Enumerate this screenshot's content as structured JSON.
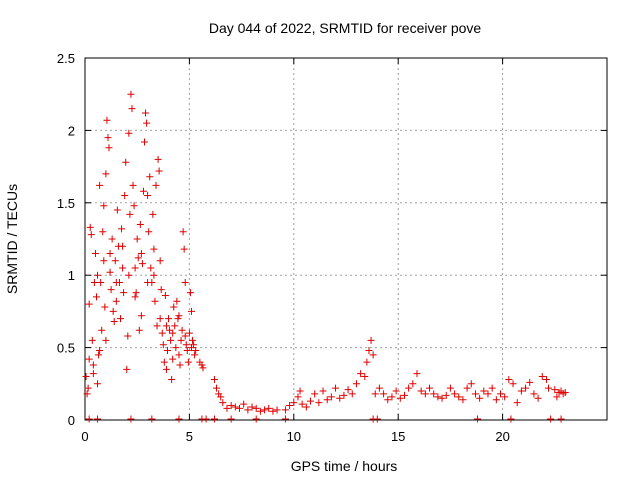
{
  "chart_data": {
    "type": "scatter",
    "title": "Day 044 of 2022, SRMTID for receiver pove",
    "xlabel": "GPS time / hours",
    "ylabel": "SRMTID / TECUs",
    "xlim": [
      0,
      25
    ],
    "ylim": [
      0,
      2.5
    ],
    "x_ticks": [
      0,
      5,
      10,
      15,
      20
    ],
    "x_tick_labels": [
      "0",
      "5",
      "10",
      "15",
      "20"
    ],
    "y_ticks": [
      0,
      0.5,
      1,
      1.5,
      2,
      2.5
    ],
    "y_tick_labels": [
      "0",
      "0.5",
      "1",
      "1.5",
      "2",
      "2.5"
    ],
    "grid": true,
    "marker": "+",
    "color": "#e00000",
    "series": [
      {
        "name": "SRMTID",
        "points": [
          [
            0.05,
            0.3
          ],
          [
            0.1,
            0.18
          ],
          [
            0.15,
            0.22
          ],
          [
            0.2,
            0.42
          ],
          [
            0.25,
            1.33
          ],
          [
            0.3,
            1.28
          ],
          [
            0.35,
            0.55
          ],
          [
            0.4,
            0.38
          ],
          [
            0.45,
            0.95
          ],
          [
            0.5,
            1.15
          ],
          [
            0.55,
            0.85
          ],
          [
            0.6,
            0.25
          ],
          [
            0.65,
            0.45
          ],
          [
            0.7,
            1.62
          ],
          [
            0.75,
            0.95
          ],
          [
            0.8,
            0.62
          ],
          [
            0.85,
            1.3
          ],
          [
            0.9,
            1.48
          ],
          [
            0.95,
            0.78
          ],
          [
            1.0,
            1.7
          ],
          [
            1.05,
            2.07
          ],
          [
            1.1,
            1.95
          ],
          [
            1.15,
            1.88
          ],
          [
            1.2,
            1.02
          ],
          [
            1.25,
            0.9
          ],
          [
            1.3,
            1.25
          ],
          [
            1.35,
            0.75
          ],
          [
            1.4,
            0.68
          ],
          [
            1.45,
            1.1
          ],
          [
            1.5,
            0.82
          ],
          [
            1.55,
            1.45
          ],
          [
            1.6,
            1.2
          ],
          [
            1.65,
            0.95
          ],
          [
            1.7,
            0.7
          ],
          [
            1.75,
            1.32
          ],
          [
            1.8,
            1.05
          ],
          [
            1.85,
            0.88
          ],
          [
            1.9,
            1.55
          ],
          [
            1.95,
            1.78
          ],
          [
            2.0,
            0.35
          ],
          [
            2.05,
            0.58
          ],
          [
            2.1,
            1.98
          ],
          [
            2.15,
            1.42
          ],
          [
            2.2,
            2.25
          ],
          [
            2.25,
            2.15
          ],
          [
            2.3,
            1.62
          ],
          [
            2.35,
            1.48
          ],
          [
            2.4,
            1.05
          ],
          [
            2.45,
            0.88
          ],
          [
            2.5,
            1.25
          ],
          [
            2.55,
            1.12
          ],
          [
            2.6,
            0.62
          ],
          [
            2.65,
            1.35
          ],
          [
            2.7,
            0.72
          ],
          [
            2.75,
            1.08
          ],
          [
            2.8,
            1.58
          ],
          [
            2.85,
            1.92
          ],
          [
            2.9,
            2.12
          ],
          [
            2.95,
            2.05
          ],
          [
            3.0,
            1.55
          ],
          [
            3.05,
            1.3
          ],
          [
            3.1,
            1.68
          ],
          [
            3.15,
            1.05
          ],
          [
            3.2,
            0.95
          ],
          [
            3.25,
            1.42
          ],
          [
            3.3,
            1.18
          ],
          [
            3.35,
            0.82
          ],
          [
            3.4,
            1.62
          ],
          [
            3.45,
            0.65
          ],
          [
            3.5,
            1.8
          ],
          [
            3.55,
            1.72
          ],
          [
            3.6,
            1.1
          ],
          [
            3.65,
            0.9
          ],
          [
            3.7,
            0.6
          ],
          [
            3.75,
            0.52
          ],
          [
            3.8,
            0.4
          ],
          [
            3.85,
            0.86
          ],
          [
            3.9,
            0.35
          ],
          [
            3.95,
            0.48
          ],
          [
            4.0,
            0.7
          ],
          [
            4.05,
            0.62
          ],
          [
            4.1,
            0.55
          ],
          [
            4.15,
            0.28
          ],
          [
            4.2,
            0.42
          ],
          [
            4.25,
            0.78
          ],
          [
            4.3,
            0.65
          ],
          [
            4.35,
            0.5
          ],
          [
            4.4,
            0.82
          ],
          [
            4.45,
            0.7
          ],
          [
            4.5,
            0.45
          ],
          [
            4.55,
            0.38
          ],
          [
            4.6,
            0.55
          ],
          [
            4.65,
            0.62
          ],
          [
            4.7,
            1.3
          ],
          [
            4.75,
            1.18
          ],
          [
            4.8,
            0.95
          ],
          [
            4.85,
            0.52
          ],
          [
            4.9,
            0.48
          ],
          [
            4.95,
            0.4
          ],
          [
            5.0,
            0.6
          ],
          [
            5.05,
            0.88
          ],
          [
            5.1,
            0.75
          ],
          [
            5.15,
            0.55
          ],
          [
            5.2,
            0.52
          ],
          [
            5.25,
            0.45
          ],
          [
            5.3,
            0.48
          ],
          [
            5.5,
            0.4
          ],
          [
            5.6,
            0.38
          ],
          [
            5.65,
            0.36
          ],
          [
            0.2,
            0.8
          ],
          [
            0.6,
            1.0
          ],
          [
            0.9,
            1.1
          ],
          [
            1.2,
            1.15
          ],
          [
            1.5,
            0.95
          ],
          [
            1.8,
            1.2
          ],
          [
            2.1,
            1.0
          ],
          [
            2.4,
            0.85
          ],
          [
            2.7,
            1.15
          ],
          [
            3.0,
            0.95
          ],
          [
            3.3,
            1.0
          ],
          [
            3.6,
            0.7
          ],
          [
            3.9,
            0.65
          ],
          [
            4.2,
            0.6
          ],
          [
            4.5,
            0.72
          ],
          [
            4.8,
            0.58
          ],
          [
            5.1,
            0.5
          ],
          [
            0.4,
            0.32
          ],
          [
            0.7,
            0.48
          ],
          [
            1.0,
            0.55
          ],
          [
            6.2,
            0.28
          ],
          [
            6.3,
            0.22
          ],
          [
            6.4,
            0.18
          ],
          [
            6.5,
            0.16
          ],
          [
            6.6,
            0.12
          ],
          [
            6.8,
            0.08
          ],
          [
            7.0,
            0.1
          ],
          [
            7.2,
            0.09
          ],
          [
            7.4,
            0.08
          ],
          [
            7.6,
            0.11
          ],
          [
            7.8,
            0.07
          ],
          [
            8.0,
            0.09
          ],
          [
            8.2,
            0.08
          ],
          [
            8.4,
            0.06
          ],
          [
            8.6,
            0.07
          ],
          [
            8.8,
            0.08
          ],
          [
            9.0,
            0.06
          ],
          [
            9.2,
            0.07
          ],
          [
            9.6,
            0.07
          ],
          [
            9.8,
            0.1
          ],
          [
            10.0,
            0.12
          ],
          [
            10.2,
            0.16
          ],
          [
            10.3,
            0.2
          ],
          [
            10.4,
            0.11
          ],
          [
            10.6,
            0.09
          ],
          [
            10.8,
            0.13
          ],
          [
            11.0,
            0.18
          ],
          [
            11.2,
            0.12
          ],
          [
            11.4,
            0.2
          ],
          [
            11.6,
            0.14
          ],
          [
            11.8,
            0.16
          ],
          [
            12.0,
            0.22
          ],
          [
            12.2,
            0.15
          ],
          [
            12.4,
            0.17
          ],
          [
            12.6,
            0.21
          ],
          [
            12.8,
            0.18
          ],
          [
            13.0,
            0.25
          ],
          [
            13.2,
            0.32
          ],
          [
            13.4,
            0.3
          ],
          [
            13.5,
            0.4
          ],
          [
            13.6,
            0.48
          ],
          [
            13.7,
            0.55
          ],
          [
            13.8,
            0.45
          ],
          [
            13.9,
            0.18
          ],
          [
            14.1,
            0.22
          ],
          [
            14.3,
            0.18
          ],
          [
            14.5,
            0.14
          ],
          [
            14.7,
            0.16
          ],
          [
            14.9,
            0.2
          ],
          [
            15.1,
            0.15
          ],
          [
            15.3,
            0.17
          ],
          [
            15.5,
            0.22
          ],
          [
            15.7,
            0.25
          ],
          [
            15.9,
            0.32
          ],
          [
            16.1,
            0.2
          ],
          [
            16.3,
            0.18
          ],
          [
            16.5,
            0.22
          ],
          [
            16.7,
            0.18
          ],
          [
            16.9,
            0.16
          ],
          [
            17.1,
            0.15
          ],
          [
            17.3,
            0.17
          ],
          [
            17.5,
            0.22
          ],
          [
            17.7,
            0.18
          ],
          [
            17.9,
            0.16
          ],
          [
            18.1,
            0.14
          ],
          [
            18.3,
            0.22
          ],
          [
            18.5,
            0.25
          ],
          [
            18.7,
            0.18
          ],
          [
            18.9,
            0.15
          ],
          [
            19.1,
            0.2
          ],
          [
            19.3,
            0.18
          ],
          [
            19.5,
            0.22
          ],
          [
            19.7,
            0.14
          ],
          [
            19.9,
            0.18
          ],
          [
            20.1,
            0.16
          ],
          [
            20.3,
            0.28
          ],
          [
            20.5,
            0.25
          ],
          [
            20.7,
            0.12
          ],
          [
            20.9,
            0.2
          ],
          [
            21.1,
            0.22
          ],
          [
            21.3,
            0.26
          ],
          [
            21.5,
            0.18
          ],
          [
            21.7,
            0.15
          ],
          [
            21.9,
            0.3
          ],
          [
            22.1,
            0.28
          ],
          [
            22.2,
            0.22
          ],
          [
            22.5,
            0.21
          ],
          [
            22.6,
            0.16
          ],
          [
            22.7,
            0.19
          ],
          [
            22.8,
            0.2
          ],
          [
            22.9,
            0.18
          ],
          [
            23.0,
            0.19
          ]
        ],
        "baseline_points": [
          [
            0.2,
            0
          ],
          [
            0.6,
            0
          ],
          [
            2.2,
            0
          ],
          [
            3.2,
            0
          ],
          [
            4.5,
            0
          ],
          [
            5.6,
            0
          ],
          [
            5.8,
            0
          ],
          [
            6.2,
            0
          ],
          [
            7.0,
            0
          ],
          [
            8.2,
            0
          ],
          [
            9.6,
            0
          ],
          [
            13.8,
            0
          ],
          [
            14.0,
            0
          ],
          [
            18.8,
            0
          ],
          [
            20.4,
            0
          ],
          [
            22.3,
            0
          ],
          [
            22.8,
            0
          ]
        ]
      }
    ]
  }
}
